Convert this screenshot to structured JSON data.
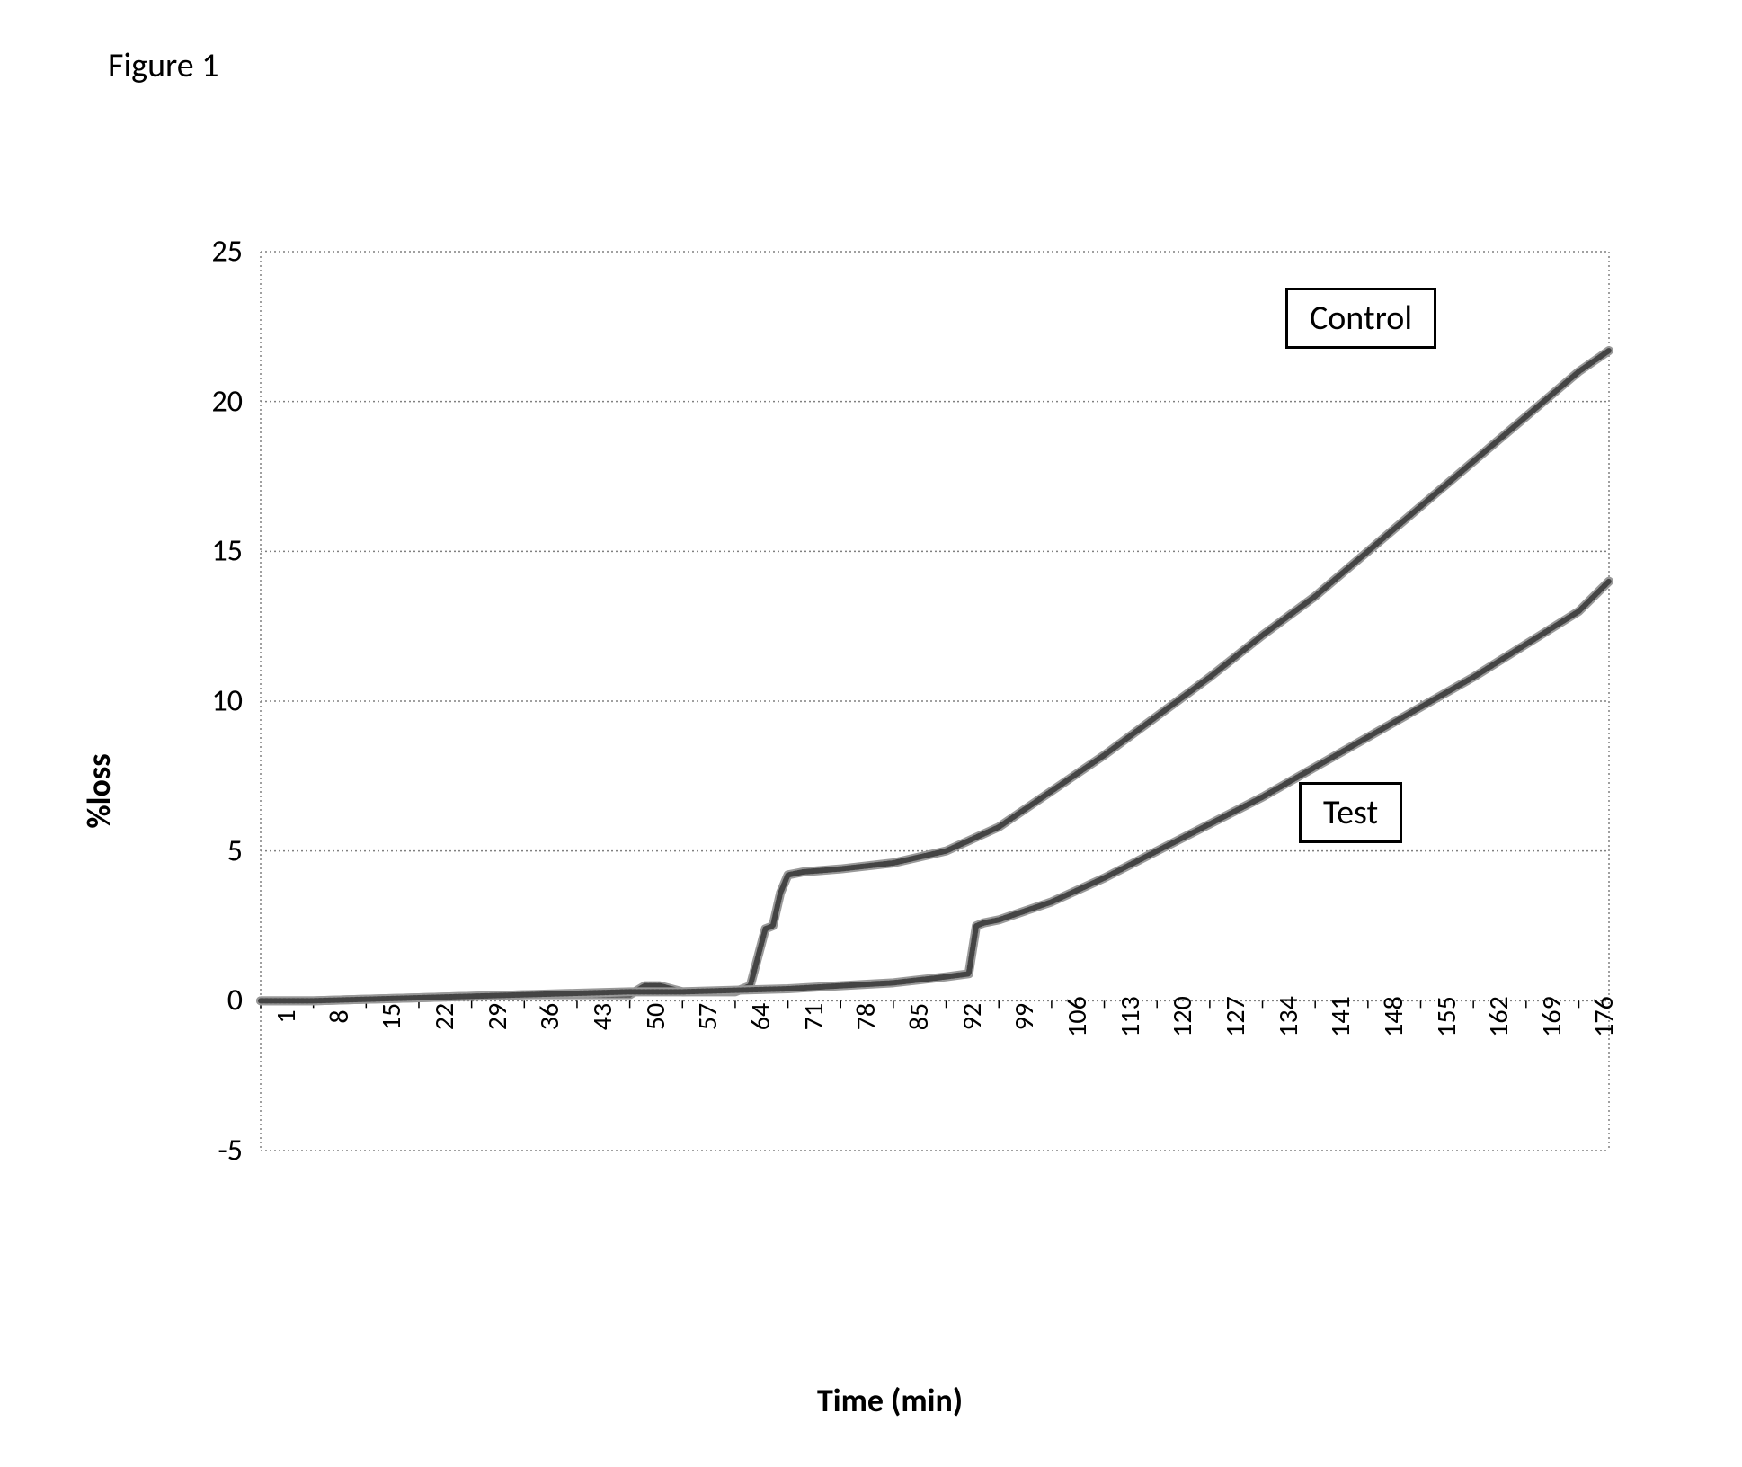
{
  "figure_title": "Figure 1",
  "chart": {
    "type": "line",
    "xlabel": "Time (min)",
    "ylabel": "%loss",
    "ylabel_fontsize": 36,
    "xlabel_fontsize": 36,
    "ylabel_fontweight": "bold",
    "xlabel_fontweight": "bold",
    "ylim": [
      -5,
      25
    ],
    "ytick_step": 5,
    "yticks": [
      -5,
      0,
      5,
      10,
      15,
      20,
      25
    ],
    "xticks": [
      1,
      8,
      15,
      22,
      29,
      36,
      43,
      50,
      57,
      64,
      71,
      78,
      85,
      92,
      99,
      106,
      113,
      120,
      127,
      134,
      141,
      148,
      155,
      162,
      169,
      176
    ],
    "xtick_rotation": -90,
    "tick_fontsize": 30,
    "background_color": "#ffffff",
    "grid_color": "#808080",
    "grid_style": "dotted",
    "grid_on": true,
    "line_color": "#666666",
    "line_width": 6,
    "line_style": "hatched",
    "series": [
      {
        "name": "Control",
        "x": [
          1,
          8,
          15,
          22,
          29,
          36,
          43,
          50,
          52,
          54,
          57,
          60,
          64,
          66,
          68,
          69,
          70,
          71,
          73,
          78,
          85,
          92,
          99,
          106,
          113,
          120,
          127,
          134,
          141,
          148,
          155,
          162,
          169,
          176,
          180
        ],
        "y": [
          0.0,
          0.0,
          0.05,
          0.1,
          0.15,
          0.2,
          0.2,
          0.2,
          0.5,
          0.5,
          0.3,
          0.3,
          0.3,
          0.5,
          2.4,
          2.5,
          3.6,
          4.2,
          4.3,
          4.4,
          4.6,
          5.0,
          5.8,
          7.0,
          8.2,
          9.5,
          10.8,
          12.2,
          13.5,
          15.0,
          16.5,
          18.0,
          19.5,
          21.0,
          21.7
        ]
      },
      {
        "name": "Test",
        "x": [
          1,
          8,
          15,
          22,
          29,
          36,
          43,
          50,
          57,
          64,
          71,
          78,
          85,
          92,
          95,
          96,
          97,
          99,
          106,
          113,
          120,
          127,
          134,
          141,
          148,
          155,
          162,
          169,
          176,
          180
        ],
        "y": [
          0.0,
          0.0,
          0.05,
          0.1,
          0.15,
          0.2,
          0.25,
          0.3,
          0.3,
          0.35,
          0.4,
          0.5,
          0.6,
          0.8,
          0.9,
          2.5,
          2.6,
          2.7,
          3.3,
          4.1,
          5.0,
          5.9,
          6.8,
          7.8,
          8.8,
          9.8,
          10.8,
          11.9,
          13.0,
          14.0
        ]
      }
    ],
    "legends": [
      {
        "text": "Control",
        "top_pct": 4,
        "left_pct": 76
      },
      {
        "text": "Test",
        "top_pct": 59,
        "left_pct": 77
      }
    ]
  }
}
